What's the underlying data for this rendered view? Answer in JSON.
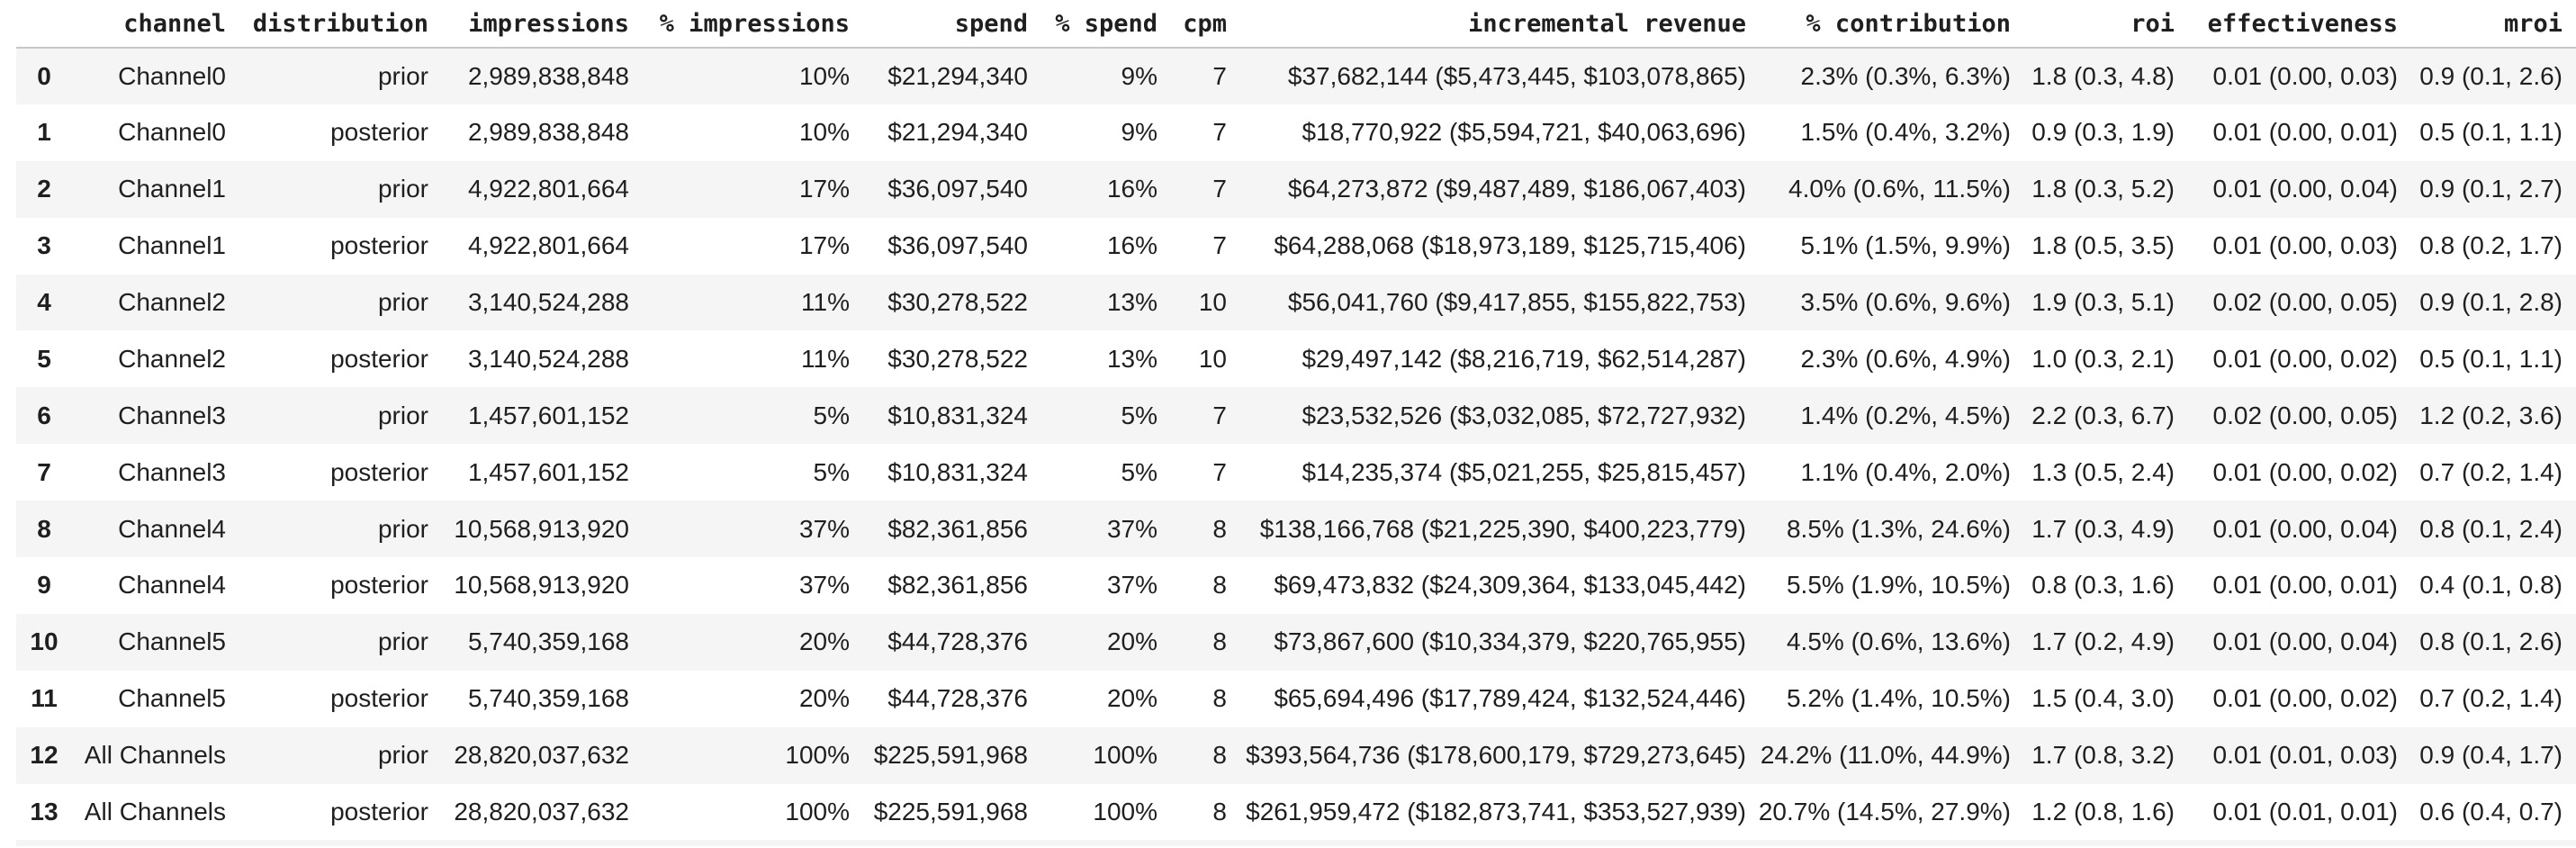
{
  "chart_data": {
    "type": "table",
    "columns": [
      "",
      "channel",
      "distribution",
      "impressions",
      "% impressions",
      "spend",
      "% spend",
      "cpm",
      "incremental revenue",
      "% contribution",
      "roi",
      "effectiveness",
      "mroi"
    ],
    "rows": [
      [
        "0",
        "Channel0",
        "prior",
        "2,989,838,848",
        "10%",
        "$21,294,340",
        "9%",
        "7",
        "$37,682,144 ($5,473,445, $103,078,865)",
        "2.3% (0.3%, 6.3%)",
        "1.8 (0.3, 4.8)",
        "0.01 (0.00, 0.03)",
        "0.9 (0.1, 2.6)"
      ],
      [
        "1",
        "Channel0",
        "posterior",
        "2,989,838,848",
        "10%",
        "$21,294,340",
        "9%",
        "7",
        "$18,770,922 ($5,594,721, $40,063,696)",
        "1.5% (0.4%, 3.2%)",
        "0.9 (0.3, 1.9)",
        "0.01 (0.00, 0.01)",
        "0.5 (0.1, 1.1)"
      ],
      [
        "2",
        "Channel1",
        "prior",
        "4,922,801,664",
        "17%",
        "$36,097,540",
        "16%",
        "7",
        "$64,273,872 ($9,487,489, $186,067,403)",
        "4.0% (0.6%, 11.5%)",
        "1.8 (0.3, 5.2)",
        "0.01 (0.00, 0.04)",
        "0.9 (0.1, 2.7)"
      ],
      [
        "3",
        "Channel1",
        "posterior",
        "4,922,801,664",
        "17%",
        "$36,097,540",
        "16%",
        "7",
        "$64,288,068 ($18,973,189, $125,715,406)",
        "5.1% (1.5%, 9.9%)",
        "1.8 (0.5, 3.5)",
        "0.01 (0.00, 0.03)",
        "0.8 (0.2, 1.7)"
      ],
      [
        "4",
        "Channel2",
        "prior",
        "3,140,524,288",
        "11%",
        "$30,278,522",
        "13%",
        "10",
        "$56,041,760 ($9,417,855, $155,822,753)",
        "3.5% (0.6%, 9.6%)",
        "1.9 (0.3, 5.1)",
        "0.02 (0.00, 0.05)",
        "0.9 (0.1, 2.8)"
      ],
      [
        "5",
        "Channel2",
        "posterior",
        "3,140,524,288",
        "11%",
        "$30,278,522",
        "13%",
        "10",
        "$29,497,142 ($8,216,719, $62,514,287)",
        "2.3% (0.6%, 4.9%)",
        "1.0 (0.3, 2.1)",
        "0.01 (0.00, 0.02)",
        "0.5 (0.1, 1.1)"
      ],
      [
        "6",
        "Channel3",
        "prior",
        "1,457,601,152",
        "5%",
        "$10,831,324",
        "5%",
        "7",
        "$23,532,526 ($3,032,085, $72,727,932)",
        "1.4% (0.2%, 4.5%)",
        "2.2 (0.3, 6.7)",
        "0.02 (0.00, 0.05)",
        "1.2 (0.2, 3.6)"
      ],
      [
        "7",
        "Channel3",
        "posterior",
        "1,457,601,152",
        "5%",
        "$10,831,324",
        "5%",
        "7",
        "$14,235,374 ($5,021,255, $25,815,457)",
        "1.1% (0.4%, 2.0%)",
        "1.3 (0.5, 2.4)",
        "0.01 (0.00, 0.02)",
        "0.7 (0.2, 1.4)"
      ],
      [
        "8",
        "Channel4",
        "prior",
        "10,568,913,920",
        "37%",
        "$82,361,856",
        "37%",
        "8",
        "$138,166,768 ($21,225,390, $400,223,779)",
        "8.5% (1.3%, 24.6%)",
        "1.7 (0.3, 4.9)",
        "0.01 (0.00, 0.04)",
        "0.8 (0.1, 2.4)"
      ],
      [
        "9",
        "Channel4",
        "posterior",
        "10,568,913,920",
        "37%",
        "$82,361,856",
        "37%",
        "8",
        "$69,473,832 ($24,309,364, $133,045,442)",
        "5.5% (1.9%, 10.5%)",
        "0.8 (0.3, 1.6)",
        "0.01 (0.00, 0.01)",
        "0.4 (0.1, 0.8)"
      ],
      [
        "10",
        "Channel5",
        "prior",
        "5,740,359,168",
        "20%",
        "$44,728,376",
        "20%",
        "8",
        "$73,867,600 ($10,334,379, $220,765,955)",
        "4.5% (0.6%, 13.6%)",
        "1.7 (0.2, 4.9)",
        "0.01 (0.00, 0.04)",
        "0.8 (0.1, 2.6)"
      ],
      [
        "11",
        "Channel5",
        "posterior",
        "5,740,359,168",
        "20%",
        "$44,728,376",
        "20%",
        "8",
        "$65,694,496 ($17,789,424, $132,524,446)",
        "5.2% (1.4%, 10.5%)",
        "1.5 (0.4, 3.0)",
        "0.01 (0.00, 0.02)",
        "0.7 (0.2, 1.4)"
      ],
      [
        "12",
        "All Channels",
        "prior",
        "28,820,037,632",
        "100%",
        "$225,591,968",
        "100%",
        "8",
        "$393,564,736 ($178,600,179, $729,273,645)",
        "24.2% (11.0%, 44.9%)",
        "1.7 (0.8, 3.2)",
        "0.01 (0.01, 0.03)",
        "0.9 (0.4, 1.7)"
      ],
      [
        "13",
        "All Channels",
        "posterior",
        "28,820,037,632",
        "100%",
        "$225,591,968",
        "100%",
        "8",
        "$261,959,472 ($182,873,741, $353,527,939)",
        "20.7% (14.5%, 27.9%)",
        "1.2 (0.8, 1.6)",
        "0.01 (0.01, 0.01)",
        "0.6 (0.4, 0.7)"
      ]
    ]
  },
  "colors": {
    "row_stripe": "#f5f5f5",
    "header_divider": "#c7c7c7",
    "text_color": "#1f1f1f",
    "background": "#ffffff"
  }
}
